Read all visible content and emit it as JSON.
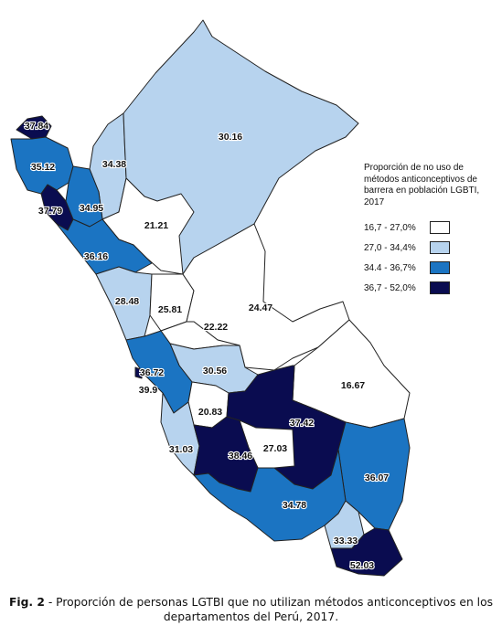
{
  "colors": {
    "class1": "#ffffff",
    "class2": "#b7d3ee",
    "class3": "#1b74c2",
    "class4": "#0a0c50"
  },
  "legend": {
    "title": "Proporción de no uso de métodos anticonceptivos de barrera en población LGBTI, 2017",
    "items": [
      {
        "label": "16,7 - 27,0%",
        "class": "class1"
      },
      {
        "label": "27,0 - 34,4%",
        "class": "class2"
      },
      {
        "label": "34.4 - 36,7%",
        "class": "class3"
      },
      {
        "label": "36,7 - 52,0%",
        "class": "class4"
      }
    ]
  },
  "departments": [
    {
      "value": "37.84",
      "class": "class4"
    },
    {
      "value": "35.12",
      "class": "class3"
    },
    {
      "value": "34.38",
      "class": "class2"
    },
    {
      "value": "37.79",
      "class": "class4"
    },
    {
      "value": "34.95",
      "class": "class3"
    },
    {
      "value": "30.16",
      "class": "class2"
    },
    {
      "value": "21.21",
      "class": "class1"
    },
    {
      "value": "36.16",
      "class": "class3"
    },
    {
      "value": "28.48",
      "class": "class2"
    },
    {
      "value": "25.81",
      "class": "class1"
    },
    {
      "value": "24.47",
      "class": "class1"
    },
    {
      "value": "22.22",
      "class": "class1"
    },
    {
      "value": "30.56",
      "class": "class2"
    },
    {
      "value": "36.72",
      "class": "class3"
    },
    {
      "value": "39.9",
      "class": "class4"
    },
    {
      "value": "16.67",
      "class": "class1"
    },
    {
      "value": "20.83",
      "class": "class1"
    },
    {
      "value": "37.42",
      "class": "class4"
    },
    {
      "value": "27.03",
      "class": "class1"
    },
    {
      "value": "31.03",
      "class": "class2"
    },
    {
      "value": "38.46",
      "class": "class4"
    },
    {
      "value": "36.07",
      "class": "class3"
    },
    {
      "value": "34.78",
      "class": "class3"
    },
    {
      "value": "33.33",
      "class": "class2"
    },
    {
      "value": "52.03",
      "class": "class4"
    }
  ],
  "caption": {
    "fig_label": "Fig. 2",
    "text": " - Proporción de personas LGTBI que no utilizan métodos anticonceptivos en los departamentos del Perú, 2017."
  }
}
